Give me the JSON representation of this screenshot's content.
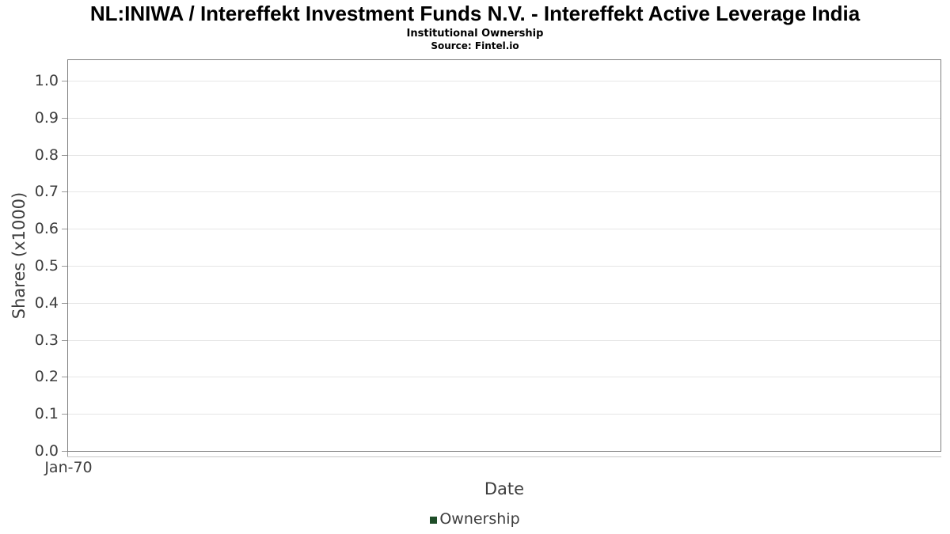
{
  "header": {
    "title": "NL:INIWA / Intereffekt Investment Funds N.V. - Intereffekt Active Leverage India",
    "subtitle": "Institutional Ownership",
    "source": "Source: Fintel.io"
  },
  "chart_data": {
    "type": "line",
    "title": "NL:INIWA / Intereffekt Investment Funds N.V. - Intereffekt Active Leverage India",
    "subtitle": "Institutional Ownership",
    "source": "Source: Fintel.io",
    "xlabel": "Date",
    "ylabel": "Shares (x1000)",
    "xticks": [
      "Jan-70"
    ],
    "yticks": [
      {
        "label": "0.0",
        "value": 0.0
      },
      {
        "label": "0.1",
        "value": 0.1
      },
      {
        "label": "0.2",
        "value": 0.2
      },
      {
        "label": "0.3",
        "value": 0.3
      },
      {
        "label": "0.4",
        "value": 0.4
      },
      {
        "label": "0.5",
        "value": 0.5
      },
      {
        "label": "0.6",
        "value": 0.6
      },
      {
        "label": "0.7",
        "value": 0.7
      },
      {
        "label": "0.8",
        "value": 0.8
      },
      {
        "label": "0.9",
        "value": 0.9
      },
      {
        "label": "1.0",
        "value": 1.0
      }
    ],
    "ylim": [
      0.0,
      1.06
    ],
    "grid": true,
    "legend": {
      "position": "bottom",
      "entries": [
        {
          "label": "Ownership",
          "color": "#1e4d28"
        }
      ]
    },
    "series": [
      {
        "name": "Ownership",
        "color": "#1e4d28",
        "x": [],
        "y": []
      }
    ]
  },
  "colors": {
    "background": "#ffffff",
    "plot_border": "#7f7f7f",
    "gridline": "#e6e6e6",
    "axis_line": "#c8c8c8",
    "tick_mark": "#999999",
    "axis_text": "#3d3d3d",
    "title_text": "#000000",
    "legend_marker": "#1e4d28"
  }
}
